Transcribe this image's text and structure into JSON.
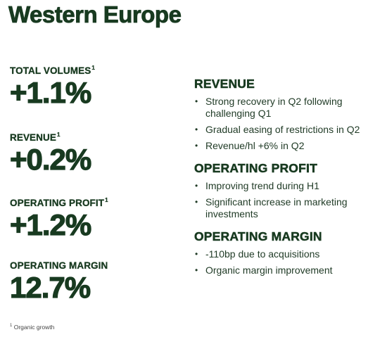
{
  "title": "Western Europe",
  "metrics": [
    {
      "label": "TOTAL VOLUMES",
      "footnote_mark": "1",
      "value": "+1.1%"
    },
    {
      "label": "REVENUE",
      "footnote_mark": "1",
      "value": "+0.2%"
    },
    {
      "label": "OPERATING PROFIT",
      "footnote_mark": "1",
      "value": "+1.2%"
    },
    {
      "label": "OPERATING MARGIN",
      "footnote_mark": "",
      "value": "12.7%"
    }
  ],
  "footnote": {
    "mark": "1",
    "text": "Organic growth"
  },
  "sections": [
    {
      "heading": "REVENUE",
      "bullets": [
        "Strong recovery in Q2 following challenging Q1",
        "Gradual easing of restrictions in Q2",
        "Revenue/hl +6% in Q2"
      ]
    },
    {
      "heading": "OPERATING PROFIT",
      "bullets": [
        "Improving trend during H1",
        "Significant increase in marketing investments"
      ]
    },
    {
      "heading": "OPERATING MARGIN",
      "bullets": [
        "-110bp due to acquisitions",
        "Organic margin improvement"
      ]
    }
  ]
}
